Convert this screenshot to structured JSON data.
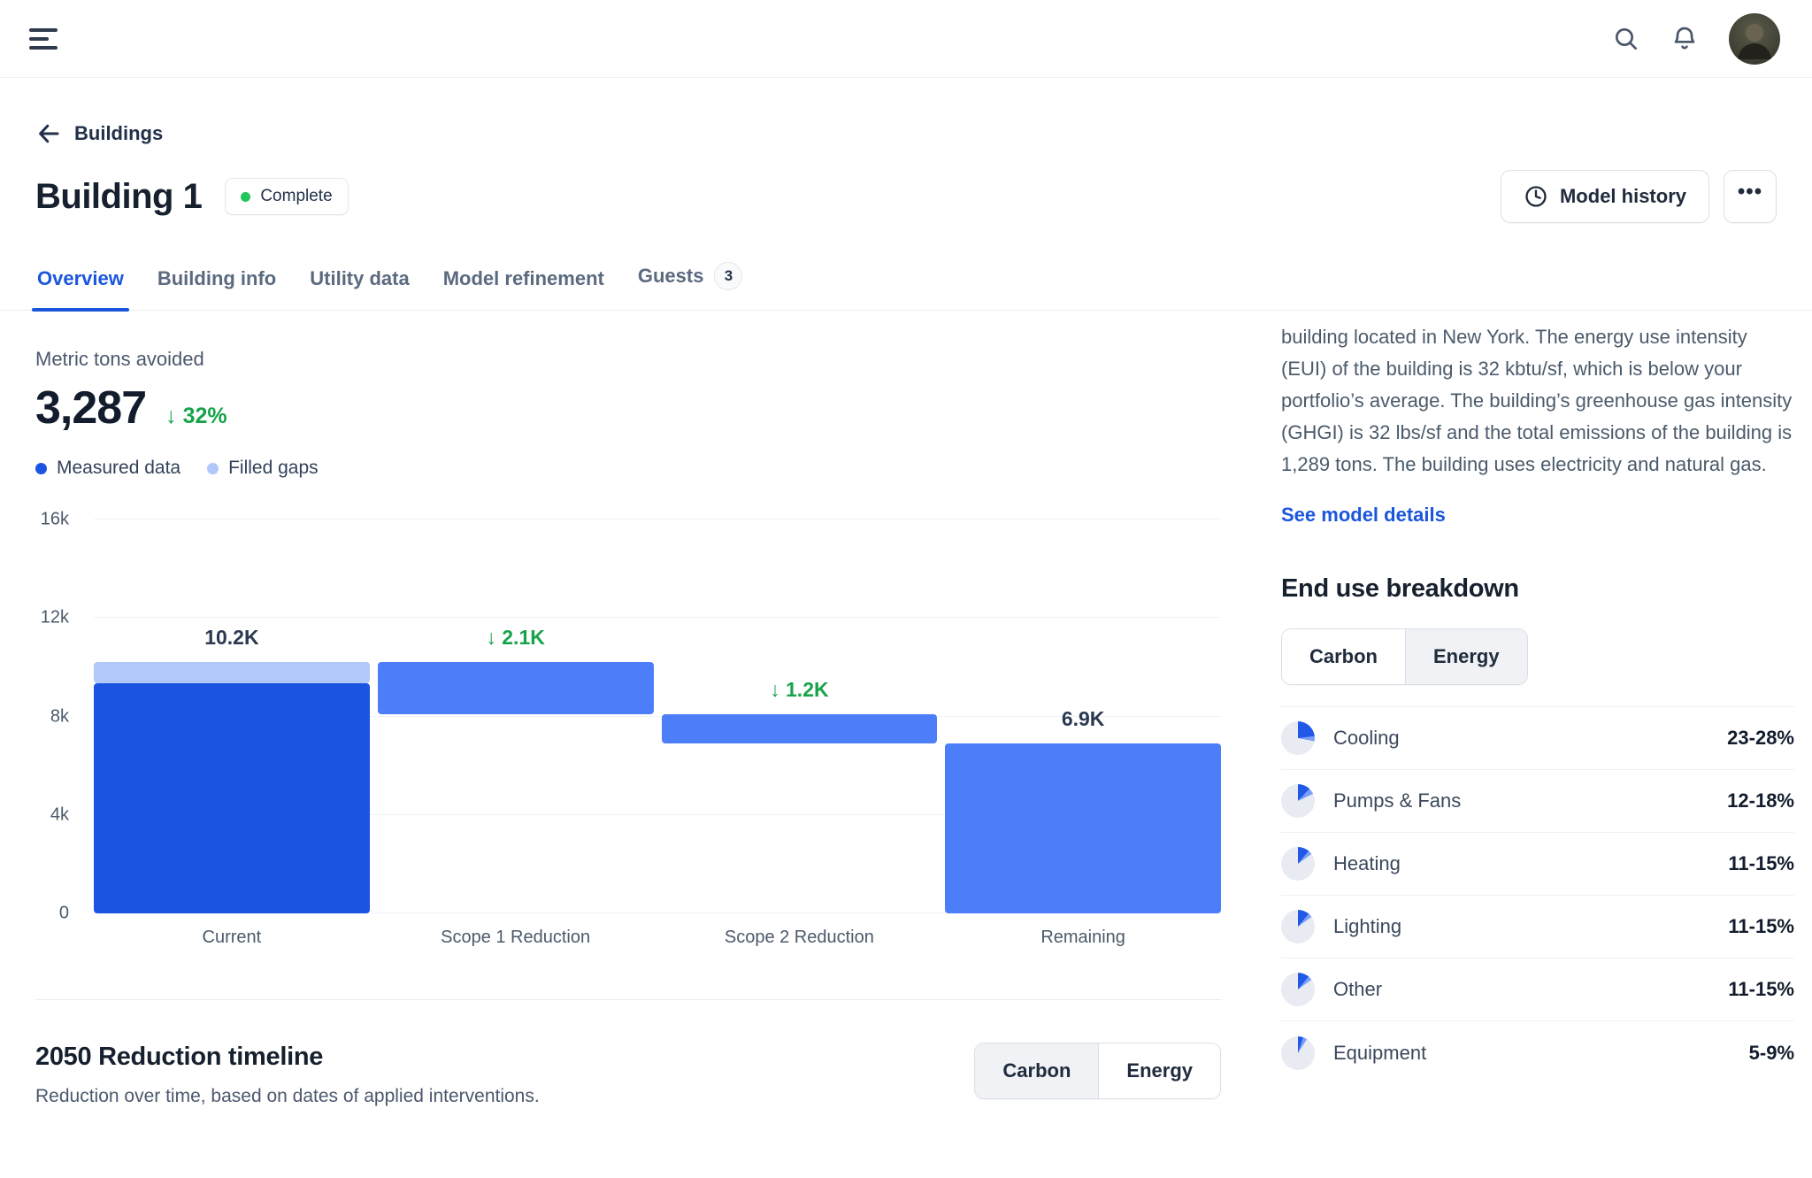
{
  "header": {
    "icons": {
      "menu": "hamburger-menu",
      "search": "magnifier",
      "notifications": "bell",
      "avatar": "user-photo"
    }
  },
  "breadcrumb": {
    "back_label": "Buildings",
    "back_icon": "arrow-left"
  },
  "page_head": {
    "title": "Building 1",
    "status_badge": {
      "label": "Complete",
      "dot_color": "#22c55e"
    },
    "model_history_label": "Model history",
    "model_history_icon": "clock",
    "more_label": "•••"
  },
  "tabs": {
    "items": [
      {
        "label": "Overview",
        "active": true
      },
      {
        "label": "Building info",
        "active": false
      },
      {
        "label": "Utility data",
        "active": false
      },
      {
        "label": "Model refinement",
        "active": false
      },
      {
        "label": "Guests",
        "active": false,
        "badge": "3"
      }
    ]
  },
  "metric": {
    "label": "Metric tons avoided",
    "value": "3,287",
    "delta_arrow": "↓",
    "delta": "32%",
    "delta_color": "#16a34a",
    "legend": [
      {
        "label": "Measured data",
        "color": "#1b54e0"
      },
      {
        "label": "Filled gaps",
        "color": "#b3c8fa"
      }
    ]
  },
  "chart_data": {
    "type": "bar",
    "subtype": "waterfall",
    "title": "Metric tons avoided",
    "xlabel": "",
    "ylabel": "Metric tons",
    "ylim": [
      0,
      16000
    ],
    "grid": "horizontal",
    "legend_position": "above-left",
    "yticks": [
      {
        "value": 0,
        "label": "0"
      },
      {
        "value": 4000,
        "label": "4k"
      },
      {
        "value": 8000,
        "label": "8k"
      },
      {
        "value": 12000,
        "label": "12k"
      },
      {
        "value": 16000,
        "label": "16k"
      }
    ],
    "colors": {
      "measured": "#1b54e0",
      "filled": "#b3c8fa",
      "reduction": "#4d7ef9",
      "remaining": "#4d7ef9"
    },
    "categories": [
      "Current",
      "Scope 1 Reduction",
      "Scope 2 Reduction",
      "Remaining"
    ],
    "bars": [
      {
        "category": "Current",
        "label": "10.2K",
        "label_type": "dark",
        "segments": [
          {
            "from": 0,
            "to": 9350,
            "color": "measured"
          },
          {
            "from": 9350,
            "to": 10200,
            "color": "filled"
          }
        ]
      },
      {
        "category": "Scope 1 Reduction",
        "label": "↓ 2.1K",
        "label_type": "green",
        "segments": [
          {
            "from": 8100,
            "to": 10200,
            "color": "reduction"
          }
        ]
      },
      {
        "category": "Scope 2 Reduction",
        "label": "↓ 1.2K",
        "label_type": "green",
        "segments": [
          {
            "from": 6900,
            "to": 8100,
            "color": "reduction"
          }
        ]
      },
      {
        "category": "Remaining",
        "label": "6.9K",
        "label_type": "dark",
        "segments": [
          {
            "from": 0,
            "to": 6900,
            "color": "remaining"
          }
        ]
      }
    ]
  },
  "timeline_section": {
    "title": "2050 Reduction timeline",
    "subtitle": "Reduction over time, based on dates of applied interventions.",
    "toggle": {
      "options": [
        "Carbon",
        "Energy"
      ],
      "selected": "Carbon"
    }
  },
  "model_summary": {
    "text": "building located in New York. The energy use intensity (EUI) of the building is 32 kbtu/sf, which is below your portfolio’s average. The building’s greenhouse gas intensity (GHGI) is 32 lbs/sf and the total emissions of the building is 1,289 tons. The building uses electricity and natural gas.",
    "link_label": "See model details"
  },
  "end_use": {
    "title": "End use breakdown",
    "toggle": {
      "options": [
        "Carbon",
        "Energy"
      ],
      "selected": "Carbon"
    },
    "pie_colors": {
      "primary": "#2158e8",
      "secondary": "#7b9ef8",
      "rest": "#e8ebf1"
    },
    "rows": [
      {
        "label": "Cooling",
        "range": "23-28%",
        "low": 23,
        "high": 28
      },
      {
        "label": "Pumps & Fans",
        "range": "12-18%",
        "low": 12,
        "high": 18
      },
      {
        "label": "Heating",
        "range": "11-15%",
        "low": 11,
        "high": 15
      },
      {
        "label": "Lighting",
        "range": "11-15%",
        "low": 11,
        "high": 15
      },
      {
        "label": "Other",
        "range": "11-15%",
        "low": 11,
        "high": 15
      },
      {
        "label": "Equipment",
        "range": "5-9%",
        "low": 5,
        "high": 9
      }
    ]
  }
}
